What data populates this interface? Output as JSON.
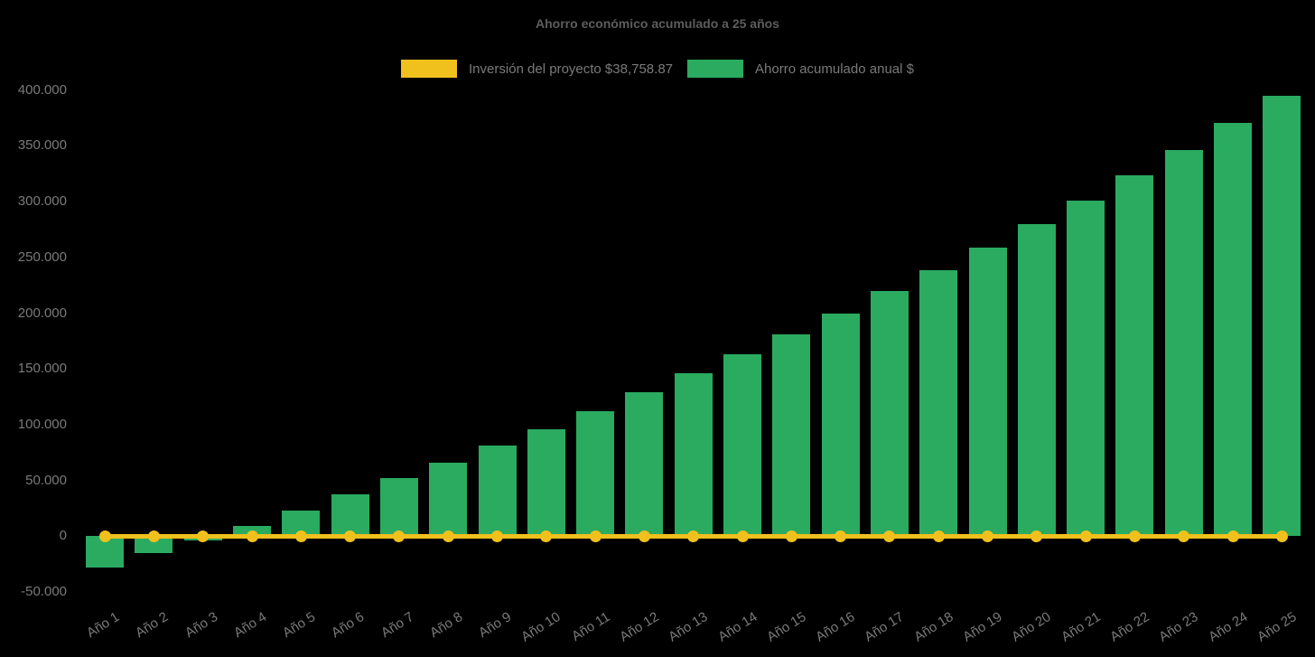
{
  "chart_data": {
    "type": "bar",
    "title": "Ahorro económico acumulado a 25 años",
    "categories": [
      "Año 1",
      "Año 2",
      "Año 3",
      "Año 4",
      "Año 5",
      "Año 6",
      "Año 7",
      "Año 8",
      "Año 9",
      "Año 10",
      "Año 11",
      "Año 12",
      "Año 13",
      "Año 14",
      "Año 15",
      "Año 16",
      "Año 17",
      "Año 18",
      "Año 19",
      "Año 20",
      "Año 21",
      "Año 22",
      "Año 23",
      "Año 24",
      "Año 25"
    ],
    "series": [
      {
        "name": "Inversión del proyecto $38,758.87",
        "type": "line",
        "color": "#f0c01d",
        "marker": "circle",
        "render": "horizontal line at y=0 with a circular marker at every year",
        "values": [
          0,
          0,
          0,
          0,
          0,
          0,
          0,
          0,
          0,
          0,
          0,
          0,
          0,
          0,
          0,
          0,
          0,
          0,
          0,
          0,
          0,
          0,
          0,
          0,
          0
        ]
      },
      {
        "name": "Ahorro acumulado anual $",
        "type": "bar",
        "color": "#2aab60",
        "values": [
          -28000,
          -15000,
          -4000,
          9500,
          23000,
          37500,
          52000,
          66000,
          81000,
          96000,
          112000,
          129000,
          146000,
          163500,
          181000,
          200000,
          219500,
          238500,
          259000,
          280000,
          301000,
          323500,
          346500,
          370500,
          395000
        ]
      }
    ],
    "xlabel": "",
    "ylabel": "",
    "ylim": [
      -50000,
      400000
    ],
    "yticks": {
      "values": [
        400000,
        350000,
        300000,
        250000,
        200000,
        150000,
        100000,
        50000,
        0,
        -50000
      ],
      "labels": [
        "400.000",
        "350.000",
        "300.000",
        "250.000",
        "200.000",
        "150.000",
        "100.000",
        "50.000",
        "0",
        "-50.000"
      ]
    },
    "grid": false,
    "legend_position": "top-center",
    "background": "#000000",
    "text_colors": {
      "title": "#5c5d5f",
      "labels": "#7a7a7a"
    }
  }
}
